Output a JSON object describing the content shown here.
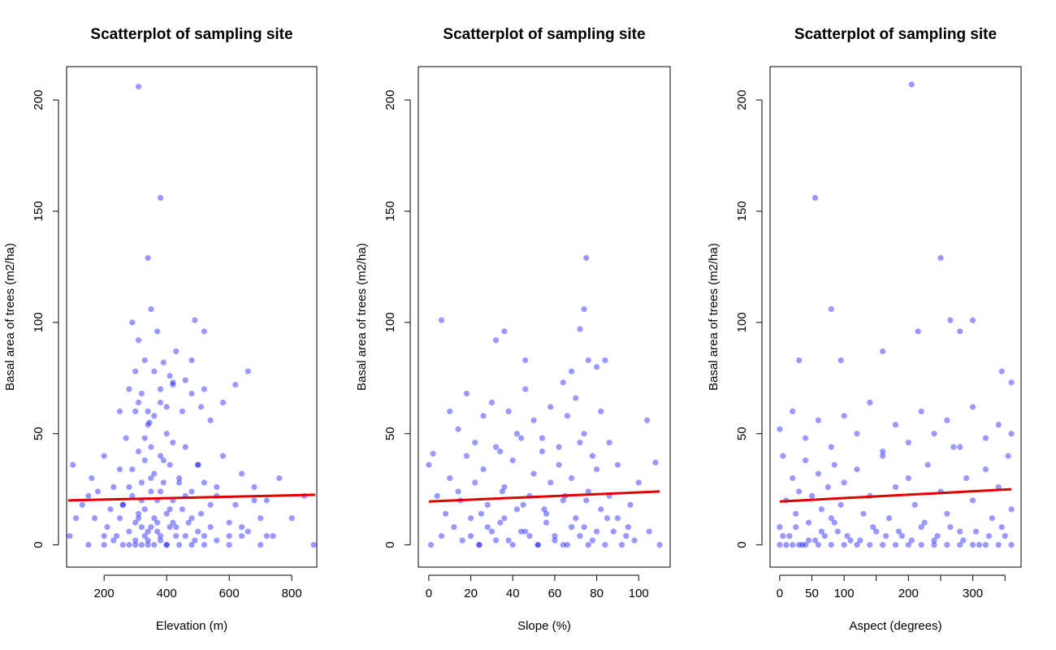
{
  "chart_data": [
    {
      "type": "scatter",
      "title": "Scatterplot of sampling site",
      "xlabel": "Elevation (m)",
      "ylabel": "Basal area of trees (m2/ha)",
      "xlim": [
        80,
        880
      ],
      "ylim": [
        -10,
        215
      ],
      "xticks": [
        200,
        400,
        600,
        800
      ],
      "yticks": [
        0,
        50,
        100,
        150,
        200
      ],
      "point_color": "#0000ff",
      "fit_color": "#e00000",
      "fit_line": {
        "x": [
          85,
          875
        ],
        "y": [
          20,
          22.5
        ]
      },
      "points": {
        "x": [
          90,
          100,
          110,
          130,
          150,
          160,
          170,
          180,
          200,
          210,
          220,
          230,
          240,
          250,
          260,
          270,
          280,
          290,
          300,
          300,
          310,
          320,
          320,
          330,
          330,
          340,
          340,
          350,
          350,
          360,
          360,
          370,
          370,
          380,
          380,
          390,
          400,
          400,
          410,
          410,
          420,
          430,
          440,
          450,
          460,
          470,
          480,
          490,
          500,
          510,
          520,
          540,
          560,
          580,
          600,
          620,
          640,
          660,
          680,
          700,
          720,
          740,
          760,
          800,
          840,
          870,
          150,
          200,
          250,
          260,
          280,
          290,
          300,
          310,
          320,
          330,
          340,
          350,
          360,
          370,
          380,
          390,
          400,
          410,
          420,
          430,
          440,
          460,
          480,
          500,
          520,
          540,
          560,
          600,
          640,
          680,
          720,
          200,
          230,
          260,
          280,
          300,
          310,
          320,
          330,
          340,
          350,
          360,
          380,
          400,
          420,
          440,
          460,
          480,
          500,
          520,
          560,
          600,
          640,
          700,
          250,
          280,
          300,
          320,
          340,
          360,
          380,
          400,
          420,
          450,
          480,
          510,
          540,
          580,
          620,
          660,
          290,
          310,
          330,
          350,
          370,
          390,
          410,
          430,
          460,
          490,
          520,
          310,
          340,
          380,
          420,
          480,
          520,
          310,
          345,
          380
        ],
        "y": [
          4,
          36,
          12,
          18,
          22,
          30,
          12,
          24,
          40,
          8,
          16,
          26,
          4,
          34,
          18,
          48,
          0,
          22,
          10,
          60,
          14,
          28,
          8,
          38,
          16,
          54,
          2,
          24,
          44,
          12,
          32,
          6,
          20,
          40,
          4,
          28,
          14,
          50,
          8,
          36,
          20,
          4,
          30,
          16,
          44,
          10,
          24,
          2,
          36,
          14,
          28,
          8,
          22,
          40,
          4,
          18,
          32,
          6,
          26,
          12,
          20,
          4,
          30,
          12,
          22,
          0,
          0,
          4,
          12,
          18,
          26,
          34,
          2,
          42,
          20,
          48,
          6,
          30,
          58,
          10,
          24,
          38,
          0,
          16,
          46,
          8,
          28,
          22,
          12,
          36,
          4,
          18,
          26,
          10,
          8,
          20,
          4,
          0,
          2,
          0,
          6,
          0,
          12,
          0,
          4,
          0,
          8,
          0,
          2,
          0,
          10,
          0,
          4,
          0,
          6,
          0,
          2,
          0,
          4,
          0,
          60,
          70,
          78,
          68,
          60,
          78,
          70,
          62,
          72,
          60,
          68,
          62,
          56,
          64,
          72,
          78,
          100,
          92,
          83,
          106,
          96,
          82,
          76,
          87,
          74,
          101,
          96,
          206,
          129,
          156,
          73,
          83,
          70,
          64,
          55,
          64
        ]
      }
    },
    {
      "type": "scatter",
      "title": "Scatterplot of sampling site",
      "xlabel": "Slope (%)",
      "ylabel": "Basal area of trees (m2/ha)",
      "xlim": [
        -5,
        115
      ],
      "ylim": [
        -10,
        215
      ],
      "xticks": [
        0,
        20,
        40,
        60,
        80,
        100
      ],
      "yticks": [
        0,
        50,
        100,
        150,
        200
      ],
      "point_color": "#0000ff",
      "fit_color": "#e00000",
      "fit_line": {
        "x": [
          0,
          110
        ],
        "y": [
          19.5,
          24
        ]
      },
      "points": {
        "x": [
          0,
          1,
          2,
          4,
          6,
          8,
          10,
          12,
          14,
          16,
          18,
          20,
          22,
          24,
          26,
          28,
          30,
          32,
          34,
          36,
          38,
          40,
          42,
          44,
          46,
          48,
          50,
          52,
          54,
          56,
          58,
          60,
          62,
          64,
          66,
          68,
          70,
          72,
          74,
          76,
          78,
          80,
          82,
          84,
          86,
          88,
          90,
          92,
          94,
          96,
          98,
          100,
          104,
          108,
          110,
          10,
          14,
          18,
          22,
          26,
          30,
          34,
          38,
          42,
          46,
          50,
          54,
          58,
          62,
          66,
          70,
          74,
          78,
          82,
          86,
          90,
          20,
          24,
          28,
          32,
          36,
          40,
          44,
          48,
          52,
          56,
          60,
          64,
          68,
          72,
          76,
          80,
          15,
          25,
          35,
          45,
          55,
          65,
          75,
          85,
          95,
          105,
          6,
          32,
          36,
          46,
          64,
          68,
          72,
          74,
          75,
          76,
          80,
          84
        ],
        "y": [
          36,
          0,
          41,
          22,
          4,
          14,
          30,
          8,
          24,
          2,
          40,
          12,
          28,
          0,
          34,
          18,
          6,
          44,
          10,
          26,
          2,
          38,
          16,
          48,
          6,
          22,
          32,
          0,
          42,
          14,
          28,
          4,
          36,
          20,
          0,
          30,
          12,
          46,
          8,
          24,
          2,
          34,
          16,
          0,
          22,
          6,
          12,
          0,
          4,
          18,
          2,
          28,
          56,
          37,
          0,
          60,
          52,
          68,
          46,
          58,
          64,
          42,
          60,
          50,
          70,
          56,
          48,
          62,
          44,
          58,
          66,
          50,
          40,
          60,
          46,
          36,
          4,
          0,
          8,
          2,
          12,
          0,
          6,
          4,
          0,
          10,
          2,
          0,
          8,
          4,
          0,
          6,
          20,
          14,
          24,
          18,
          16,
          22,
          20,
          12,
          8,
          6,
          101,
          92,
          96,
          83,
          73,
          78,
          97,
          106,
          129,
          83,
          80,
          83
        ]
      }
    },
    {
      "type": "scatter",
      "title": "Scatterplot of sampling site",
      "xlabel": "Aspect (degrees)",
      "ylabel": "Basal area of trees (m2/ha)",
      "xlim": [
        -15,
        375
      ],
      "ylim": [
        -10,
        215
      ],
      "xticks": [
        0,
        50,
        100,
        200,
        300
      ],
      "xticks_unlabeled": [
        150,
        250,
        350
      ],
      "yticks": [
        0,
        50,
        100,
        150,
        200
      ],
      "point_color": "#0000ff",
      "fit_color": "#e00000",
      "fit_line": {
        "x": [
          0,
          360
        ],
        "y": [
          19.5,
          25
        ]
      },
      "points": {
        "x": [
          0,
          5,
          10,
          15,
          20,
          25,
          30,
          35,
          40,
          45,
          50,
          55,
          60,
          65,
          70,
          75,
          80,
          85,
          90,
          95,
          100,
          110,
          120,
          130,
          140,
          150,
          160,
          170,
          180,
          190,
          200,
          210,
          220,
          230,
          240,
          250,
          260,
          270,
          280,
          290,
          300,
          310,
          320,
          330,
          340,
          350,
          355,
          360,
          0,
          10,
          20,
          30,
          40,
          60,
          80,
          100,
          120,
          140,
          160,
          180,
          200,
          220,
          240,
          260,
          280,
          300,
          320,
          340,
          360,
          0,
          20,
          40,
          60,
          80,
          100,
          120,
          140,
          160,
          180,
          200,
          220,
          240,
          260,
          280,
          300,
          320,
          340,
          360,
          5,
          25,
          45,
          65,
          85,
          105,
          125,
          145,
          165,
          185,
          205,
          225,
          245,
          265,
          285,
          305,
          325,
          345,
          30,
          55,
          80,
          95,
          160,
          205,
          215,
          250,
          265,
          280,
          300,
          345,
          360
        ],
        "y": [
          8,
          40,
          20,
          4,
          30,
          14,
          24,
          0,
          38,
          10,
          22,
          2,
          32,
          16,
          4,
          26,
          12,
          36,
          6,
          18,
          28,
          2,
          34,
          14,
          22,
          6,
          40,
          12,
          26,
          4,
          30,
          18,
          8,
          36,
          2,
          24,
          14,
          44,
          6,
          30,
          20,
          0,
          34,
          12,
          26,
          4,
          40,
          16,
          0,
          0,
          0,
          0,
          0,
          0,
          0,
          0,
          0,
          0,
          0,
          0,
          0,
          0,
          0,
          0,
          0,
          0,
          0,
          0,
          0,
          52,
          60,
          48,
          56,
          44,
          58,
          50,
          64,
          42,
          54,
          46,
          60,
          50,
          56,
          44,
          62,
          48,
          54,
          50,
          4,
          8,
          2,
          6,
          10,
          4,
          2,
          8,
          4,
          6,
          2,
          10,
          4,
          8,
          2,
          6,
          4,
          8,
          83,
          156,
          106,
          83,
          87,
          207,
          96,
          129,
          101,
          96,
          101,
          78,
          73
        ]
      }
    }
  ]
}
